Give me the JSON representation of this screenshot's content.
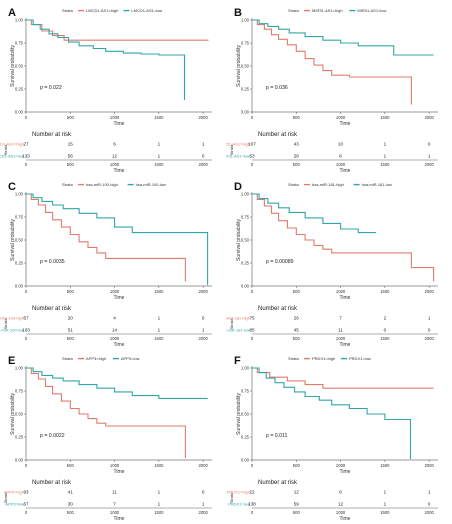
{
  "chart_data": [
    {
      "panel": "A",
      "type": "line",
      "legend_title": "Strata",
      "ylabel": "Survival probability",
      "xlabel": "Time",
      "ylim": [
        0,
        1
      ],
      "xlim": [
        0,
        2100
      ],
      "yticks": [
        "0.00",
        "0.25",
        "0.50",
        "0.75",
        "1.00"
      ],
      "xticks": [
        0,
        500,
        1000,
        1500,
        2000
      ],
      "pvalue": "p = 0.022",
      "series": [
        {
          "name": "LMCD1-AS1=high",
          "color": "#e07b6d",
          "x": [
            0,
            60,
            180,
            300,
            430,
            2060
          ],
          "y": [
            1.0,
            0.95,
            0.88,
            0.83,
            0.78,
            0.78
          ]
        },
        {
          "name": "LMCD1-AS1=low",
          "color": "#31a6a8",
          "x": [
            0,
            80,
            160,
            260,
            360,
            480,
            600,
            760,
            900,
            1100,
            1300,
            1500,
            1790
          ],
          "y": [
            1.0,
            0.95,
            0.9,
            0.85,
            0.81,
            0.76,
            0.72,
            0.69,
            0.66,
            0.64,
            0.63,
            0.62,
            0.13
          ]
        }
      ],
      "risk_table": {
        "title": "Number at risk",
        "times": [
          0,
          500,
          1000,
          1500,
          2000
        ],
        "rows": [
          [
            "27",
            "15",
            "6",
            "1",
            "1"
          ],
          [
            "133",
            "56",
            "12",
            "1",
            "0"
          ]
        ]
      }
    },
    {
      "panel": "B",
      "type": "line",
      "legend_title": "Strata",
      "ylabel": "Survival probability",
      "xlabel": "Time",
      "ylim": [
        0,
        1
      ],
      "xlim": [
        0,
        2100
      ],
      "yticks": [
        "0.00",
        "0.25",
        "0.50",
        "0.75",
        "1.00"
      ],
      "xticks": [
        0,
        500,
        1000,
        1500,
        2000
      ],
      "pvalue": "p = 0.036",
      "series": [
        {
          "name": "MIR31-AS1=high",
          "color": "#e07b6d",
          "x": [
            0,
            60,
            140,
            220,
            300,
            400,
            500,
            600,
            700,
            800,
            900,
            1100,
            1800
          ],
          "y": [
            1.0,
            0.95,
            0.9,
            0.84,
            0.79,
            0.73,
            0.66,
            0.58,
            0.51,
            0.45,
            0.4,
            0.38,
            0.08
          ]
        },
        {
          "name": "MIR31-AS1=low",
          "color": "#31a6a8",
          "x": [
            0,
            80,
            180,
            300,
            420,
            600,
            800,
            1000,
            1200,
            1600,
            2050
          ],
          "y": [
            1.0,
            0.96,
            0.93,
            0.9,
            0.86,
            0.82,
            0.78,
            0.75,
            0.72,
            0.62,
            0.62
          ]
        }
      ],
      "risk_table": {
        "title": "Number at risk",
        "times": [
          0,
          500,
          1000,
          1500,
          2000
        ],
        "rows": [
          [
            "107",
            "43",
            "10",
            "1",
            "0"
          ],
          [
            "53",
            "28",
            "8",
            "1",
            "1"
          ]
        ]
      }
    },
    {
      "panel": "C",
      "type": "line",
      "legend_title": "Strata",
      "ylabel": "Survival probability",
      "xlabel": "Time",
      "ylim": [
        0,
        1
      ],
      "xlim": [
        0,
        2100
      ],
      "yticks": [
        "0.00",
        "0.25",
        "0.50",
        "0.75",
        "1.00"
      ],
      "xticks": [
        0,
        500,
        1000,
        1500,
        2000
      ],
      "pvalue": "p = 0.0035",
      "series": [
        {
          "name": "hsa-miR-100-high",
          "color": "#e07b6d",
          "x": [
            0,
            60,
            140,
            220,
            300,
            400,
            500,
            600,
            700,
            800,
            900,
            1100,
            1800
          ],
          "y": [
            1.0,
            0.94,
            0.88,
            0.8,
            0.72,
            0.64,
            0.56,
            0.48,
            0.42,
            0.36,
            0.3,
            0.3,
            0.05
          ]
        },
        {
          "name": "hsa-miR-100-low",
          "color": "#31a6a8",
          "x": [
            0,
            80,
            180,
            300,
            420,
            600,
            800,
            1000,
            1200,
            1500,
            2050
          ],
          "y": [
            1.0,
            0.96,
            0.92,
            0.88,
            0.84,
            0.79,
            0.74,
            0.64,
            0.58,
            0.58,
            0.01
          ]
        }
      ],
      "risk_table": {
        "title": "Number at risk",
        "times": [
          0,
          500,
          1000,
          1500,
          2000
        ],
        "rows": [
          [
            "57",
            "20",
            "4",
            "1",
            "0"
          ],
          [
            "103",
            "51",
            "14",
            "1",
            "1"
          ]
        ]
      }
    },
    {
      "panel": "D",
      "type": "line",
      "legend_title": "Strata",
      "ylabel": "Survival probability",
      "xlabel": "Time",
      "ylim": [
        0,
        1
      ],
      "xlim": [
        0,
        2100
      ],
      "yticks": [
        "0.00",
        "0.25",
        "0.50",
        "0.75",
        "1.00"
      ],
      "xticks": [
        0,
        500,
        1000,
        1500,
        2000
      ],
      "pvalue": "p = 0.00089",
      "series": [
        {
          "name": "hsa-miR-181-high",
          "color": "#e07b6d",
          "x": [
            0,
            60,
            140,
            220,
            300,
            400,
            500,
            600,
            700,
            800,
            900,
            1800,
            2050
          ],
          "y": [
            1.0,
            0.94,
            0.87,
            0.79,
            0.71,
            0.63,
            0.56,
            0.5,
            0.44,
            0.4,
            0.36,
            0.2,
            0.05
          ]
        },
        {
          "name": "hsa-miR-181-low",
          "color": "#31a6a8",
          "x": [
            0,
            80,
            180,
            300,
            420,
            600,
            800,
            1000,
            1200,
            1400
          ],
          "y": [
            1.0,
            0.95,
            0.9,
            0.85,
            0.8,
            0.74,
            0.68,
            0.62,
            0.58,
            0.58
          ]
        }
      ],
      "risk_table": {
        "title": "Number at risk",
        "times": [
          0,
          500,
          1000,
          1500,
          2000
        ],
        "rows": [
          [
            "75",
            "26",
            "7",
            "2",
            "1"
          ],
          [
            "85",
            "45",
            "11",
            "0",
            "0"
          ]
        ]
      }
    },
    {
      "panel": "E",
      "type": "line",
      "legend_title": "Strata",
      "ylabel": "Survival probability",
      "xlabel": "Time",
      "ylim": [
        0,
        1
      ],
      "xlim": [
        0,
        2100
      ],
      "yticks": [
        "0.00",
        "0.25",
        "0.50",
        "0.75",
        "1.00"
      ],
      "xticks": [
        0,
        500,
        1000,
        1500,
        2000
      ],
      "pvalue": "p = 0.0022",
      "series": [
        {
          "name": "APP3=high",
          "color": "#e07b6d",
          "x": [
            0,
            60,
            140,
            220,
            300,
            400,
            500,
            600,
            700,
            800,
            900,
            1800
          ],
          "y": [
            1.0,
            0.94,
            0.88,
            0.8,
            0.72,
            0.64,
            0.56,
            0.5,
            0.45,
            0.4,
            0.37,
            0.02
          ]
        },
        {
          "name": "APP3=low",
          "color": "#31a6a8",
          "x": [
            0,
            80,
            180,
            300,
            420,
            600,
            800,
            1000,
            1200,
            1500,
            2050
          ],
          "y": [
            1.0,
            0.96,
            0.92,
            0.89,
            0.86,
            0.82,
            0.78,
            0.74,
            0.7,
            0.67,
            0.67
          ]
        }
      ],
      "risk_table": {
        "title": "Number at risk",
        "times": [
          0,
          500,
          1000,
          1500,
          2000
        ],
        "rows": [
          [
            "93",
            "41",
            "11",
            "1",
            "0"
          ],
          [
            "67",
            "30",
            "7",
            "1",
            "1"
          ]
        ]
      }
    },
    {
      "panel": "F",
      "type": "line",
      "legend_title": "Strata",
      "ylabel": "Survival probability",
      "xlabel": "Time",
      "ylim": [
        0,
        1
      ],
      "xlim": [
        0,
        2100
      ],
      "yticks": [
        "0.00",
        "0.25",
        "0.50",
        "0.75",
        "1.00"
      ],
      "xticks": [
        0,
        500,
        1000,
        1500,
        2000
      ],
      "pvalue": "p = 0.011",
      "series": [
        {
          "name": "PRDX1=high",
          "color": "#e07b6d",
          "x": [
            0,
            60,
            200,
            400,
            600,
            800,
            2050
          ],
          "y": [
            1.0,
            0.95,
            0.9,
            0.86,
            0.82,
            0.78,
            0.78
          ]
        },
        {
          "name": "PRDX1=low",
          "color": "#31a6a8",
          "x": [
            0,
            80,
            160,
            260,
            360,
            480,
            600,
            760,
            900,
            1100,
            1300,
            1500,
            1790
          ],
          "y": [
            1.0,
            0.95,
            0.89,
            0.84,
            0.79,
            0.74,
            0.69,
            0.65,
            0.6,
            0.56,
            0.5,
            0.44,
            0.01
          ]
        }
      ],
      "risk_table": {
        "title": "Number at risk",
        "times": [
          0,
          500,
          1000,
          1500,
          2000
        ],
        "rows": [
          [
            "22",
            "12",
            "6",
            "1",
            "1"
          ],
          [
            "138",
            "59",
            "12",
            "1",
            "0"
          ]
        ]
      }
    }
  ]
}
